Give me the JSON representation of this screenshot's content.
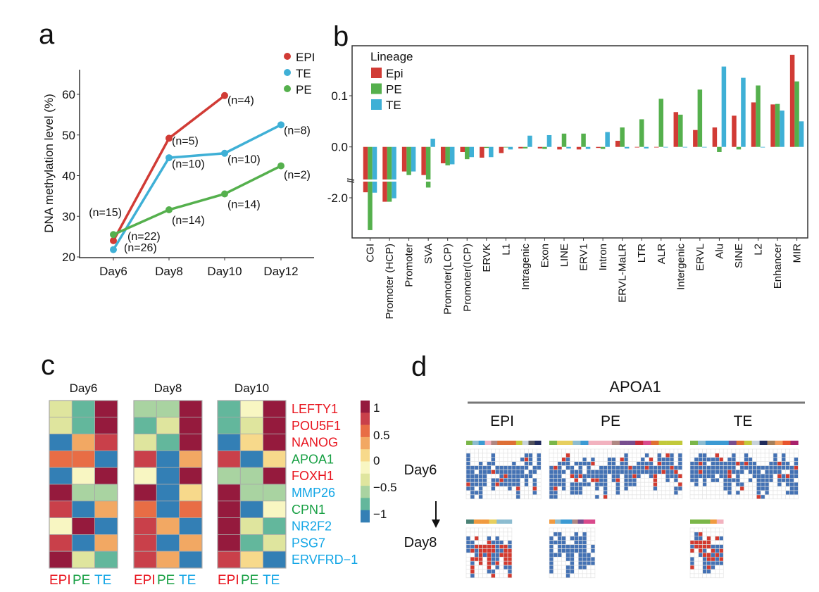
{
  "panels": {
    "a": "a",
    "b": "b",
    "c": "c",
    "d": "d"
  },
  "chart_data": [
    {
      "type": "line",
      "panel": "a",
      "ylabel": "DNA methylation level (%)",
      "xlabel": "",
      "categories": [
        "Day6",
        "Day8",
        "Day10",
        "Day12"
      ],
      "ylim": [
        20,
        65
      ],
      "yticks": [
        20,
        30,
        40,
        50,
        60
      ],
      "legend_placement": "top-right",
      "series": [
        {
          "name": "EPI",
          "color": "#d13b35",
          "values": [
            24,
            49.2,
            59.7,
            null
          ],
          "n_labels": [
            "(n=15)",
            "(n=5)",
            "(n=4)",
            null
          ]
        },
        {
          "name": "TE",
          "color": "#3fb0d6",
          "values": [
            21.8,
            44.4,
            45.5,
            52.5
          ],
          "n_labels": [
            "(n=26)",
            "(n=10)",
            "(n=10)",
            "(n=8)"
          ]
        },
        {
          "name": "PE",
          "color": "#55b04d",
          "values": [
            25.5,
            31.6,
            35.5,
            42.4
          ],
          "n_labels": [
            "(n=22)",
            "(n=14)",
            "(n=14)",
            "(n=2)"
          ]
        }
      ]
    },
    {
      "type": "bar",
      "panel": "b",
      "legend_title": "Lineage",
      "legend_placement": "top-left",
      "y_axis_break": true,
      "yticks": [
        "0.1",
        "0.0",
        "-2.0"
      ],
      "categories": [
        "CGI",
        "Promoter (HCP)",
        "Promoter",
        "SVA",
        "Promoter(LCP)",
        "Promoter(ICP)",
        "ERVK",
        "L1",
        "Intragenic",
        "Exon",
        "LINE",
        "ERV1",
        "Intron",
        "ERVL-MaLR",
        "LTR",
        "ALR",
        "Intergenic",
        "ERVL",
        "Alu",
        "SINE",
        "L2",
        "Enhancer",
        "MIR"
      ],
      "series": [
        {
          "name": "Epi",
          "color": "#d13b35",
          "values": [
            -1.93,
            -2.05,
            -0.048,
            -0.055,
            -0.032,
            -0.01,
            -0.021,
            -0.012,
            -0.003,
            -0.003,
            -0.005,
            -0.005,
            -0.002,
            0.012,
            -0.001,
            0.0,
            0.068,
            0.033,
            0.038,
            0.061,
            0.087,
            0.083,
            0.18
          ]
        },
        {
          "name": "PE",
          "color": "#55b04d",
          "values": [
            -2.41,
            -2.05,
            -0.055,
            -1.87,
            -0.036,
            -0.024,
            -0.002,
            -0.001,
            -0.003,
            -0.004,
            0.026,
            0.026,
            -0.004,
            0.038,
            0.054,
            0.094,
            0.063,
            0.112,
            -0.01,
            -0.005,
            0.12,
            0.084,
            0.128
          ]
        },
        {
          "name": "TE",
          "color": "#3fb0d6",
          "values": [
            -1.935,
            -2.006,
            -0.048,
            0.016,
            -0.034,
            -0.02,
            -0.02,
            -0.005,
            0.022,
            0.023,
            -0.003,
            -0.004,
            0.029,
            -0.003,
            -0.003,
            0.0,
            -0.001,
            0.0,
            0.157,
            0.135,
            0.0,
            0.071,
            0.05
          ]
        }
      ]
    },
    {
      "type": "heatmap",
      "panel": "c",
      "days": [
        "Day6",
        "Day8",
        "Day10"
      ],
      "columns": [
        "EPI",
        "PE",
        "TE"
      ],
      "column_colors": [
        "#e8141e",
        "#18a044",
        "#13a6e6"
      ],
      "genes": [
        {
          "name": "LEFTY1",
          "color": "#e8141e"
        },
        {
          "name": "POU5F1",
          "color": "#e8141e"
        },
        {
          "name": "NANOG",
          "color": "#e8141e"
        },
        {
          "name": "APOA1",
          "color": "#18a044"
        },
        {
          "name": "FOXH1",
          "color": "#e8141e"
        },
        {
          "name": "MMP26",
          "color": "#13a6e6"
        },
        {
          "name": "CPN1",
          "color": "#18a044"
        },
        {
          "name": "NR2F2",
          "color": "#13a6e6"
        },
        {
          "name": "PSG7",
          "color": "#13a6e6"
        },
        {
          "name": "ERVFRD−1",
          "color": "#13a6e6"
        }
      ],
      "values": [
        [
          [
            -0.2,
            -0.7,
            1
          ],
          [
            -0.2,
            -0.7,
            1
          ],
          [
            -1,
            0.4,
            0.8
          ],
          [
            0.6,
            0.6,
            -1
          ],
          [
            -1,
            0,
            1
          ],
          [
            1,
            -0.4,
            -0.4
          ],
          [
            0.8,
            -1,
            0.4
          ],
          [
            0,
            1,
            -1
          ],
          [
            0.8,
            -1,
            0.4
          ],
          [
            1,
            -0.2,
            -0.7
          ]
        ],
        [
          [
            -0.4,
            -0.4,
            1
          ],
          [
            -0.7,
            -0.2,
            1
          ],
          [
            -0.2,
            -0.7,
            1
          ],
          [
            0.8,
            -1,
            0.4
          ],
          [
            0,
            -1,
            1
          ],
          [
            1,
            -1,
            0.2
          ],
          [
            0.6,
            -1,
            0.6
          ],
          [
            0.8,
            0.4,
            -1
          ],
          [
            0.8,
            -1,
            0.4
          ],
          [
            0.8,
            0.4,
            -1
          ]
        ],
        [
          [
            -0.7,
            0,
            1
          ],
          [
            -0.7,
            -0.2,
            1
          ],
          [
            -1,
            0.2,
            1
          ],
          [
            0.8,
            -1,
            0.2
          ],
          [
            -0.4,
            -0.4,
            1
          ],
          [
            1,
            -0.4,
            -0.4
          ],
          [
            1,
            -1,
            0
          ],
          [
            1,
            -0.2,
            -0.7
          ],
          [
            1,
            -0.7,
            -0.2
          ],
          [
            0.8,
            0.2,
            -1
          ]
        ]
      ],
      "colorbar_ticks": [
        "1",
        "0.5",
        "0",
        "−0.5",
        "−1"
      ],
      "colorscale": [
        "#951a3d",
        "#c9404a",
        "#e86d45",
        "#f2a863",
        "#f7d98b",
        "#f8f6c2",
        "#dfe59e",
        "#a9d3a1",
        "#63b79c",
        "#337fb5"
      ]
    },
    {
      "type": "heatmap",
      "panel": "d",
      "title": "APOA1",
      "lineages": [
        "EPI",
        "PE",
        "TE"
      ],
      "rows": [
        "Day6",
        "Day8"
      ],
      "methylated_color": "#d33a2f",
      "unmethylated_color": "#4472b4",
      "cell_colors": {
        "Day6": [
          [
            "#7ab648",
            "#8cbcd0",
            "#3b9ad3",
            "#f2b2bf",
            "#b08782",
            "#de6f35",
            "#de6f35",
            "#de6f35",
            "#c2c93a",
            "#c8d2da",
            "#52525a",
            "#1f2a5a"
          ],
          [
            "#7ab648",
            "#e7cf5e",
            "#e7cf5e",
            "#8cbcd0",
            "#3b9ad3",
            "#f2b2bf",
            "#f2b2bf",
            "#f2b2bf",
            "#b08782",
            "#774d8e",
            "#774d8e",
            "#c72a38",
            "#d94a8c",
            "#e07030",
            "#c2c93a",
            "#c2c93a",
            "#c2c93a"
          ],
          [
            "#7ab648",
            "#8cbcd0",
            "#3b9ad3",
            "#3b9ad3",
            "#3b9ad3",
            "#774d8e",
            "#e07030",
            "#c2c93a",
            "#c8d2da",
            "#1f2a5a",
            "#a57f5a",
            "#f39a5a",
            "#e8542c",
            "#a8206b"
          ]
        ],
        "Day8": [
          [
            "#4a8275",
            "#f09a40",
            "#f09a40",
            "#e7cf5e",
            "#8cbcd0",
            "#8cbcd0"
          ],
          [
            "#f09a40",
            "#8cbcd0",
            "#3b9ad3",
            "#3b9ad3",
            "#b08782",
            "#774d8e",
            "#d94a8c",
            "#d94a8c"
          ],
          [
            "#7ab648",
            "#7ab648",
            "#7ab648",
            "#f09a40",
            "#f2b2bf"
          ]
        ]
      }
    }
  ]
}
